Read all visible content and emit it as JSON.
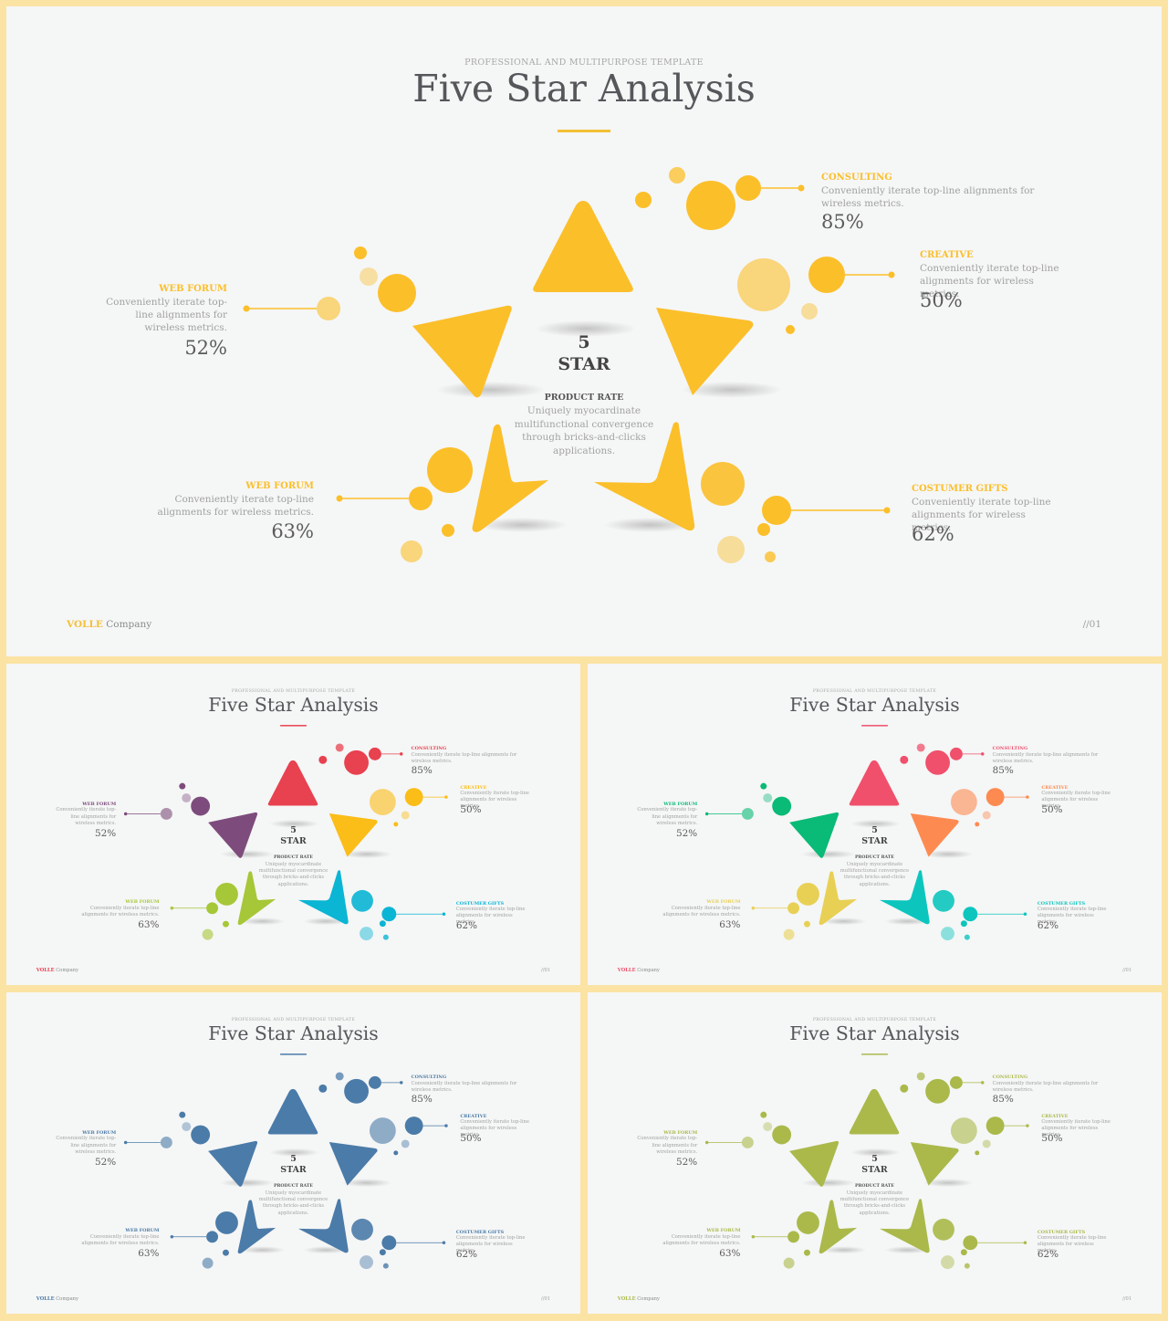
{
  "main": {
    "subtitle": "PROFESSIONAL AND MULTIPURPOSE  TEMPLATE",
    "title": "Five Star Analysis",
    "accent": "#f3c036",
    "center": {
      "number": "5",
      "word": "STAR",
      "label": "PRODUCT RATE",
      "desc": "Uniquely myocardinate multifunctional convergence through bricks-and-clicks applications."
    },
    "items": [
      {
        "label": "CONSULTING",
        "desc": "Conveniently iterate top-line alignments for wireless metrics.",
        "value": "85%"
      },
      {
        "label": "CREATIVE",
        "desc": "Conveniently iterate top-line alignments for wireless metrics.",
        "value": "50%"
      },
      {
        "label": "WEB FORUM",
        "desc": "Conveniently iterate top-line alignments for wireless metrics.",
        "value": "52%"
      },
      {
        "label": "WEB FORUM",
        "desc": "Conveniently iterate top-line alignments for wireless metrics.",
        "value": "63%"
      },
      {
        "label": "COSTUMER GIFTS",
        "desc": "Conveniently iterate top-line alignments for wireless metrics.",
        "value": "62%"
      }
    ],
    "company_brand": "VOLLE",
    "company_rest": " Company",
    "page_no": "//01"
  },
  "thumbnails": [
    {
      "title": "Five Star Analysis",
      "subtitle": "PROFESSIONAL AND MULTIPURPOSE  TEMPLATE",
      "page_no": "//01",
      "colors": {
        "top": "#e8414f",
        "ul": "#7d4c7c",
        "ur": "#fbbd17",
        "ll": "#a6c737",
        "lr": "#0bb5d4"
      },
      "accent": "#e8414f"
    },
    {
      "title": "Five Star Analysis",
      "subtitle": "PROFESSIONAL AND MULTIPURPOSE  TEMPLATE",
      "page_no": "//01",
      "colors": {
        "top": "#f0506b",
        "ul": "#0aba77",
        "ur": "#fd8b51",
        "ll": "#e8d055",
        "lr": "#0cc6be"
      },
      "accent": "#f0506b"
    },
    {
      "title": "Five Star Analysis",
      "subtitle": "PROFESSIONAL AND MULTIPURPOSE  TEMPLATE",
      "page_no": "//01",
      "colors": {
        "top": "#4b7ba8",
        "ul": "#4b7ba8",
        "ur": "#4b7ba8",
        "ll": "#4b7ba8",
        "lr": "#4b7ba8"
      },
      "accent": "#4b7ba8"
    },
    {
      "title": "Five Star Analysis",
      "subtitle": "PROFESSIONAL AND MULTIPURPOSE  TEMPLATE",
      "page_no": "//01",
      "colors": {
        "top": "#aab94a",
        "ul": "#aab94a",
        "ur": "#aab94a",
        "ll": "#aab94a",
        "lr": "#aab94a"
      },
      "accent": "#aab94a"
    }
  ],
  "main_colors": {
    "top": "#fbbf2a",
    "ul": "#fbbf2a",
    "ur": "#fbbf2a",
    "ll": "#fbbf2a",
    "lr": "#fbbf2a"
  }
}
